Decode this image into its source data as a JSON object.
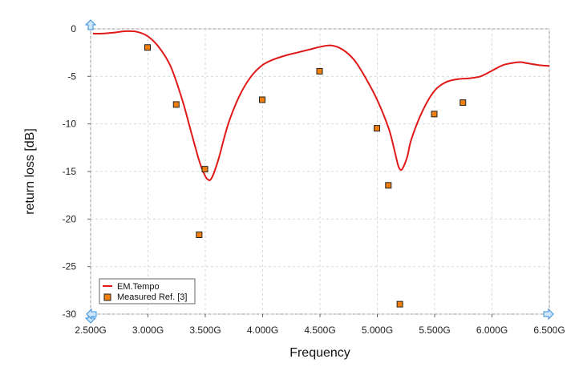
{
  "chart_data": {
    "type": "line",
    "title": "",
    "xlabel": "Frequency",
    "ylabel": "return loss [dB]",
    "xlim": [
      2.5,
      6.5
    ],
    "ylim": [
      -30,
      0
    ],
    "grid": true,
    "legend_position": "bottom-left",
    "x_ticks": [
      {
        "value": 2.5,
        "label": "2.500G"
      },
      {
        "value": 3.0,
        "label": "3.000G"
      },
      {
        "value": 3.5,
        "label": "3.500G"
      },
      {
        "value": 4.0,
        "label": "4.000G"
      },
      {
        "value": 4.5,
        "label": "4.500G"
      },
      {
        "value": 5.0,
        "label": "5.000G"
      },
      {
        "value": 5.5,
        "label": "5.500G"
      },
      {
        "value": 6.0,
        "label": "6.000G"
      },
      {
        "value": 6.5,
        "label": "6.500G"
      }
    ],
    "y_ticks": [
      {
        "value": 0,
        "label": "0"
      },
      {
        "value": -5,
        "label": "-5"
      },
      {
        "value": -10,
        "label": "-10"
      },
      {
        "value": -15,
        "label": "-15"
      },
      {
        "value": -20,
        "label": "-20"
      },
      {
        "value": -25,
        "label": "-25"
      },
      {
        "value": -30,
        "label": "-30"
      }
    ],
    "series": [
      {
        "name": "EM.Tempo",
        "kind": "line",
        "color": "#e01818",
        "x": [
          2.52,
          2.6,
          2.7,
          2.8,
          2.9,
          3.0,
          3.1,
          3.2,
          3.3,
          3.38,
          3.45,
          3.5,
          3.53,
          3.55,
          3.58,
          3.62,
          3.7,
          3.8,
          3.9,
          4.0,
          4.1,
          4.2,
          4.3,
          4.4,
          4.5,
          4.6,
          4.7,
          4.8,
          4.9,
          5.0,
          5.1,
          5.15,
          5.18,
          5.2,
          5.22,
          5.26,
          5.3,
          5.4,
          5.5,
          5.6,
          5.7,
          5.8,
          5.9,
          6.0,
          6.1,
          6.2,
          6.25,
          6.3,
          6.4,
          6.5
        ],
        "y": [
          -0.5,
          -0.5,
          -0.4,
          -0.25,
          -0.3,
          -0.8,
          -2.0,
          -4.0,
          -7.5,
          -11.0,
          -14.0,
          -15.5,
          -15.9,
          -15.8,
          -15.0,
          -13.5,
          -10.0,
          -7.0,
          -5.0,
          -3.8,
          -3.2,
          -2.8,
          -2.5,
          -2.2,
          -1.9,
          -1.75,
          -2.2,
          -3.3,
          -5.2,
          -7.5,
          -10.5,
          -12.8,
          -14.3,
          -14.8,
          -14.7,
          -13.5,
          -11.5,
          -8.5,
          -6.5,
          -5.6,
          -5.3,
          -5.2,
          -5.0,
          -4.4,
          -3.8,
          -3.55,
          -3.5,
          -3.6,
          -3.8,
          -3.9
        ]
      },
      {
        "name": "Measured Ref. [3]",
        "kind": "marker",
        "color": "#f07f10",
        "x": [
          3.0,
          3.25,
          3.45,
          3.5,
          4.0,
          4.5,
          5.0,
          5.1,
          5.2,
          5.5,
          5.75
        ],
        "y": [
          -2.0,
          -8.0,
          -21.7,
          -14.8,
          -7.5,
          -4.5,
          -10.5,
          -16.5,
          -29.0,
          -9.0,
          -7.8
        ]
      }
    ]
  }
}
